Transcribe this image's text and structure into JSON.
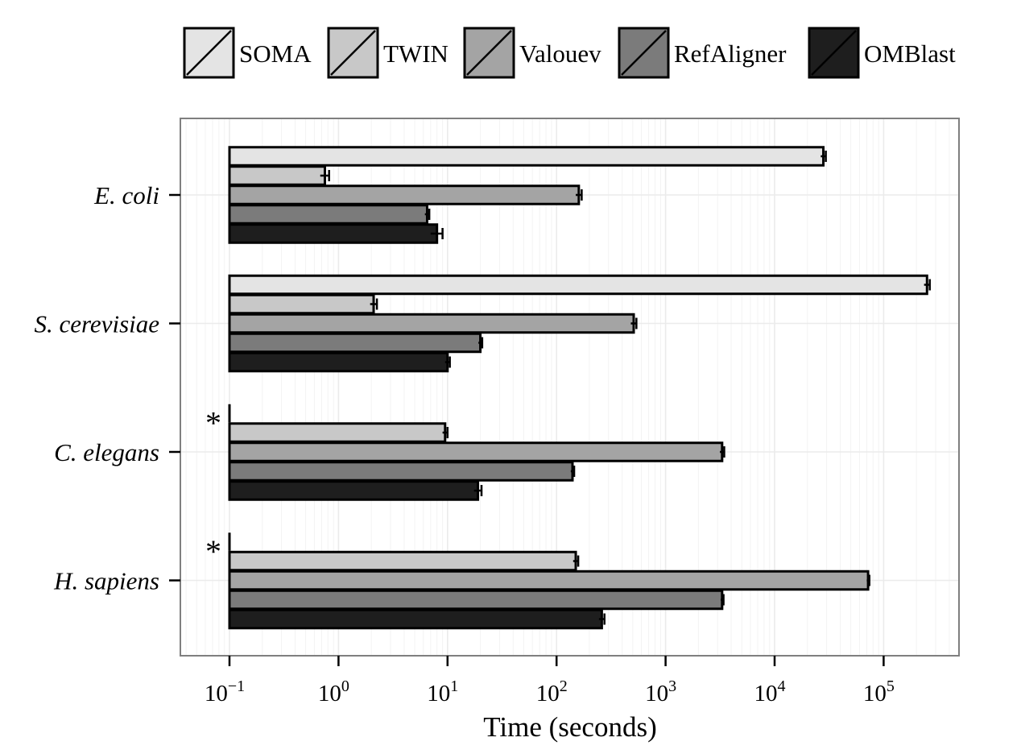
{
  "chart_data": {
    "type": "bar",
    "orientation": "horizontal",
    "x_scale": "log10",
    "xlabel": "Time (seconds)",
    "xlim": [
      0.03,
      450000
    ],
    "x_ticks": [
      {
        "value": 0.1,
        "base": "10",
        "exp": "−1"
      },
      {
        "value": 1,
        "base": "10",
        "exp": "0"
      },
      {
        "value": 10,
        "base": "10",
        "exp": "1"
      },
      {
        "value": 100,
        "base": "10",
        "exp": "2"
      },
      {
        "value": 1000,
        "base": "10",
        "exp": "3"
      },
      {
        "value": 10000,
        "base": "10",
        "exp": "4"
      },
      {
        "value": 100000,
        "base": "10",
        "exp": "5"
      }
    ],
    "grid": true,
    "legend_position": "top",
    "categories": [
      "E. coli",
      "S. cerevisiae",
      "C. elegans",
      "H. sapiens"
    ],
    "series": [
      {
        "name": "SOMA",
        "color": "#e4e4e4",
        "values": [
          28000,
          250000,
          null,
          null
        ],
        "errors": [
          1500,
          15000,
          null,
          null
        ]
      },
      {
        "name": "TWIN",
        "color": "#c8c8c8",
        "values": [
          0.75,
          2.1,
          9.5,
          150
        ],
        "errors": [
          0.07,
          0.15,
          0.5,
          8
        ]
      },
      {
        "name": "Valouev",
        "color": "#a4a4a4",
        "values": [
          160,
          510,
          3300,
          72000
        ],
        "errors": [
          10,
          30,
          150,
          2000
        ]
      },
      {
        "name": "RefAligner",
        "color": "#7b7b7b",
        "values": [
          6.5,
          20,
          140,
          3300
        ],
        "errors": [
          0.3,
          0.8,
          5,
          100
        ]
      },
      {
        "name": "OMBlast",
        "color": "#1e1e1e",
        "values": [
          8.0,
          10,
          19,
          260
        ],
        "errors": [
          1.0,
          0.5,
          1.5,
          15
        ]
      }
    ],
    "annotations": [
      {
        "text": "*",
        "category": "C. elegans"
      },
      {
        "text": "*",
        "category": "H. sapiens"
      }
    ]
  }
}
